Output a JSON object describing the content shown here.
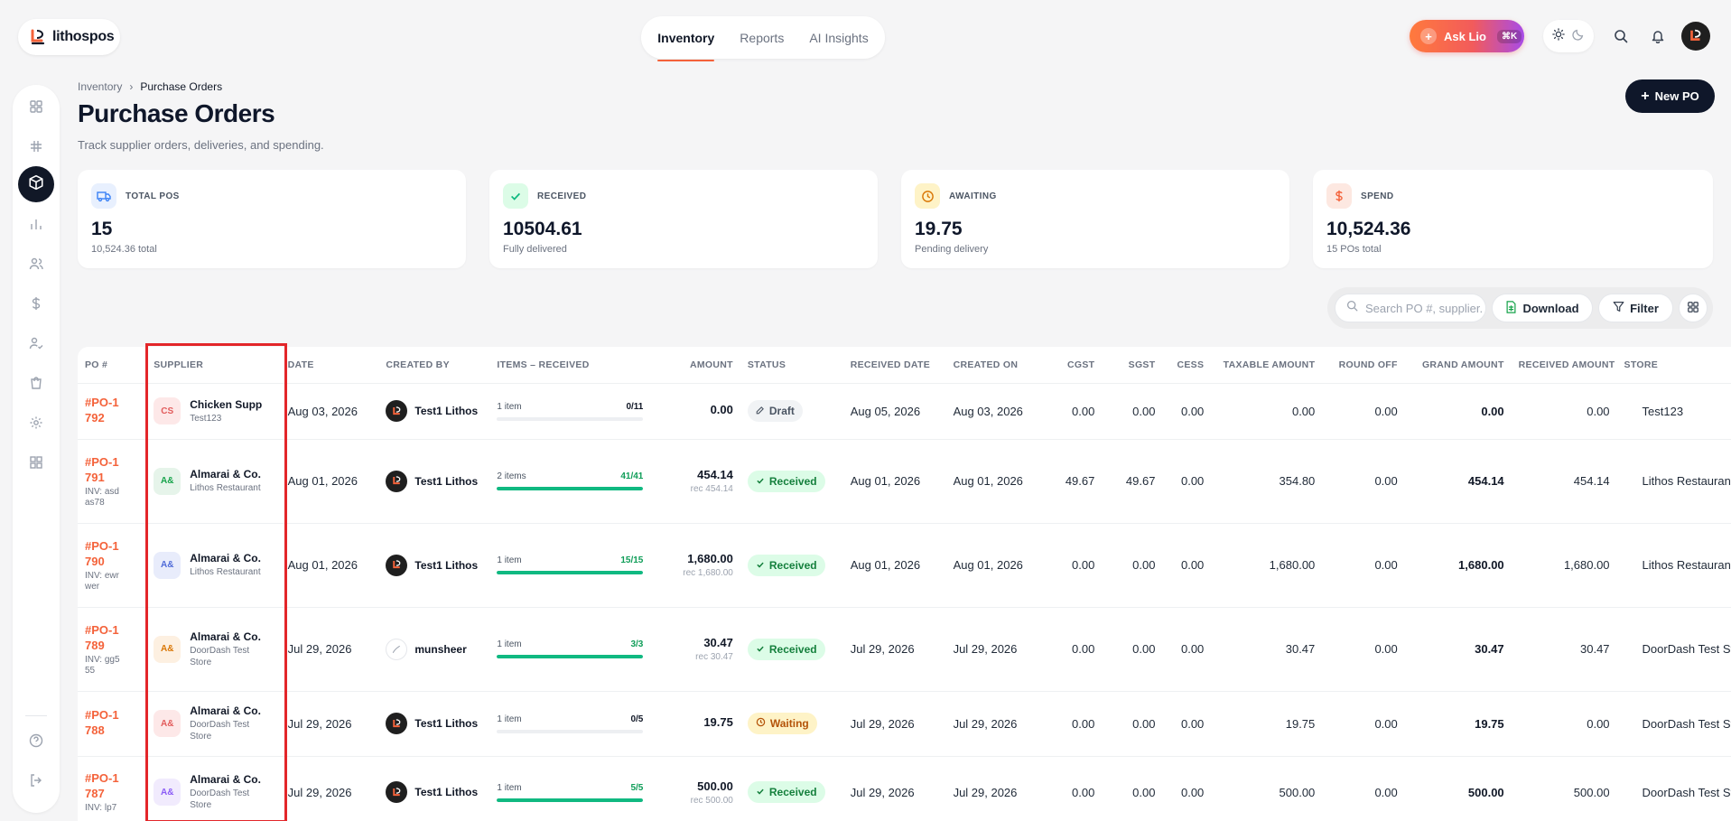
{
  "brand": {
    "name": "lithospos"
  },
  "topnav": {
    "tabs": [
      {
        "label": "Inventory",
        "active": true
      },
      {
        "label": "Reports",
        "active": false
      },
      {
        "label": "AI Insights",
        "active": false
      }
    ]
  },
  "asklio": {
    "label": "Ask Lio",
    "shortcut": "⌘K"
  },
  "breadcrumb": {
    "parent": "Inventory",
    "separator": "›",
    "current": "Purchase Orders"
  },
  "header": {
    "title": "Purchase Orders",
    "subtitle": "Track supplier orders, deliveries, and spending.",
    "new_po_label": "New PO"
  },
  "stats": [
    {
      "label": "TOTAL POS",
      "value": "15",
      "sub": "10,524.36 total",
      "icon": "truck-icon",
      "color": "#3b82f6",
      "bg": "#e8f0fe"
    },
    {
      "label": "RECEIVED",
      "value": "10504.61",
      "sub": "Fully delivered",
      "icon": "check-icon",
      "color": "#10b981",
      "bg": "#dcfce7"
    },
    {
      "label": "AWAITING",
      "value": "19.75",
      "sub": "Pending delivery",
      "icon": "clock-icon",
      "color": "#d97706",
      "bg": "#fef3c7"
    },
    {
      "label": "SPEND",
      "value": "10,524.36",
      "sub": "15 POs total",
      "icon": "dollar-icon",
      "color": "#f4623a",
      "bg": "#fde8e1"
    }
  ],
  "toolbar": {
    "search_placeholder": "Search PO #, supplier...",
    "download_label": "Download",
    "filter_label": "Filter"
  },
  "table": {
    "columns": [
      "PO #",
      "SUPPLIER",
      "DATE",
      "CREATED BY",
      "ITEMS – RECEIVED",
      "AMOUNT",
      "STATUS",
      "RECEIVED DATE",
      "CREATED ON",
      "CGST",
      "SGST",
      "CESS",
      "TAXABLE AMOUNT",
      "ROUND OFF",
      "GRAND AMOUNT",
      "RECEIVED AMOUNT",
      "STORE"
    ],
    "rows": [
      {
        "po": "#PO-1792",
        "inv": "",
        "sup_abbr": "CS",
        "sup_name": "Chicken Supp",
        "sup_store": "Test123",
        "sup_color": "#e25c5c",
        "sup_bg": "#fde8e8",
        "date": "Aug 03, 2026",
        "creator": "Test1 Lithos",
        "items": "1 item",
        "ratio": "0/11",
        "progress": 0,
        "amount": "0.00",
        "rec": "",
        "status": "Draft",
        "status_kind": "draft",
        "received_date": "Aug 05, 2026",
        "created_on": "Aug 03, 2026",
        "cgst": "0.00",
        "sgst": "0.00",
        "cess": "0.00",
        "taxable": "0.00",
        "round_off": "0.00",
        "grand": "0.00",
        "received_amount": "0.00",
        "store": "Test123"
      },
      {
        "po": "#PO-1791",
        "inv": "INV: asdas78",
        "sup_abbr": "A&",
        "sup_name": "Almarai & Co.",
        "sup_store": "Lithos Restaurant",
        "sup_color": "#16a34a",
        "sup_bg": "#e6f4ea",
        "date": "Aug 01, 2026",
        "creator": "Test1 Lithos",
        "items": "2 items",
        "ratio": "41/41",
        "progress": 1,
        "amount": "454.14",
        "rec": "rec 454.14",
        "status": "Received",
        "status_kind": "received",
        "received_date": "Aug 01, 2026",
        "created_on": "Aug 01, 2026",
        "cgst": "49.67",
        "sgst": "49.67",
        "cess": "0.00",
        "taxable": "354.80",
        "round_off": "0.00",
        "grand": "454.14",
        "received_amount": "454.14",
        "store": "Lithos Restaurant"
      },
      {
        "po": "#PO-1790",
        "inv": "INV: ewrwer",
        "sup_abbr": "A&",
        "sup_name": "Almarai & Co.",
        "sup_store": "Lithos Restaurant",
        "sup_color": "#4f6bd8",
        "sup_bg": "#e8ecfb",
        "date": "Aug 01, 2026",
        "creator": "Test1 Lithos",
        "items": "1 item",
        "ratio": "15/15",
        "progress": 1,
        "amount": "1,680.00",
        "rec": "rec 1,680.00",
        "status": "Received",
        "status_kind": "received",
        "received_date": "Aug 01, 2026",
        "created_on": "Aug 01, 2026",
        "cgst": "0.00",
        "sgst": "0.00",
        "cess": "0.00",
        "taxable": "1,680.00",
        "round_off": "0.00",
        "grand": "1,680.00",
        "received_amount": "1,680.00",
        "store": "Lithos Restaurant"
      },
      {
        "po": "#PO-1789",
        "inv": "INV: gg555",
        "sup_abbr": "A&",
        "sup_name": "Almarai & Co.",
        "sup_store": "DoorDash Test Store",
        "sup_color": "#d97706",
        "sup_bg": "#fdf0e1",
        "date": "Jul 29, 2026",
        "creator": "munsheer",
        "creator_light": true,
        "items": "1 item",
        "ratio": "3/3",
        "progress": 1,
        "amount": "30.47",
        "rec": "rec 30.47",
        "status": "Received",
        "status_kind": "received",
        "received_date": "Jul 29, 2026",
        "created_on": "Jul 29, 2026",
        "cgst": "0.00",
        "sgst": "0.00",
        "cess": "0.00",
        "taxable": "30.47",
        "round_off": "0.00",
        "grand": "30.47",
        "received_amount": "30.47",
        "store": "DoorDash Test Store"
      },
      {
        "po": "#PO-1788",
        "inv": "",
        "sup_abbr": "A&",
        "sup_name": "Almarai & Co.",
        "sup_store": "DoorDash Test Store",
        "sup_color": "#e25c5c",
        "sup_bg": "#fde8e8",
        "date": "Jul 29, 2026",
        "creator": "Test1 Lithos",
        "items": "1 item",
        "ratio": "0/5",
        "progress": 0,
        "amount": "19.75",
        "rec": "",
        "status": "Waiting",
        "status_kind": "waiting",
        "received_date": "Jul 29, 2026",
        "created_on": "Jul 29, 2026",
        "cgst": "0.00",
        "sgst": "0.00",
        "cess": "0.00",
        "taxable": "19.75",
        "round_off": "0.00",
        "grand": "19.75",
        "received_amount": "0.00",
        "store": "DoorDash Test Store"
      },
      {
        "po": "#PO-1787",
        "inv": "INV: lp7",
        "sup_abbr": "A&",
        "sup_name": "Almarai & Co.",
        "sup_store": "DoorDash Test Store",
        "sup_color": "#8b5cf6",
        "sup_bg": "#f1ebfd",
        "date": "Jul 29, 2026",
        "creator": "Test1 Lithos",
        "items": "1 item",
        "ratio": "5/5",
        "progress": 1,
        "amount": "500.00",
        "rec": "rec 500.00",
        "status": "Received",
        "status_kind": "received",
        "received_date": "Jul 29, 2026",
        "created_on": "Jul 29, 2026",
        "cgst": "0.00",
        "sgst": "0.00",
        "cess": "0.00",
        "taxable": "500.00",
        "round_off": "0.00",
        "grand": "500.00",
        "received_amount": "500.00",
        "store": "DoorDash Test Store"
      }
    ]
  },
  "colors": {
    "accent": "#f4623a",
    "dark": "#0f172a",
    "success": "#10b981",
    "highlight": "#e3262a"
  }
}
